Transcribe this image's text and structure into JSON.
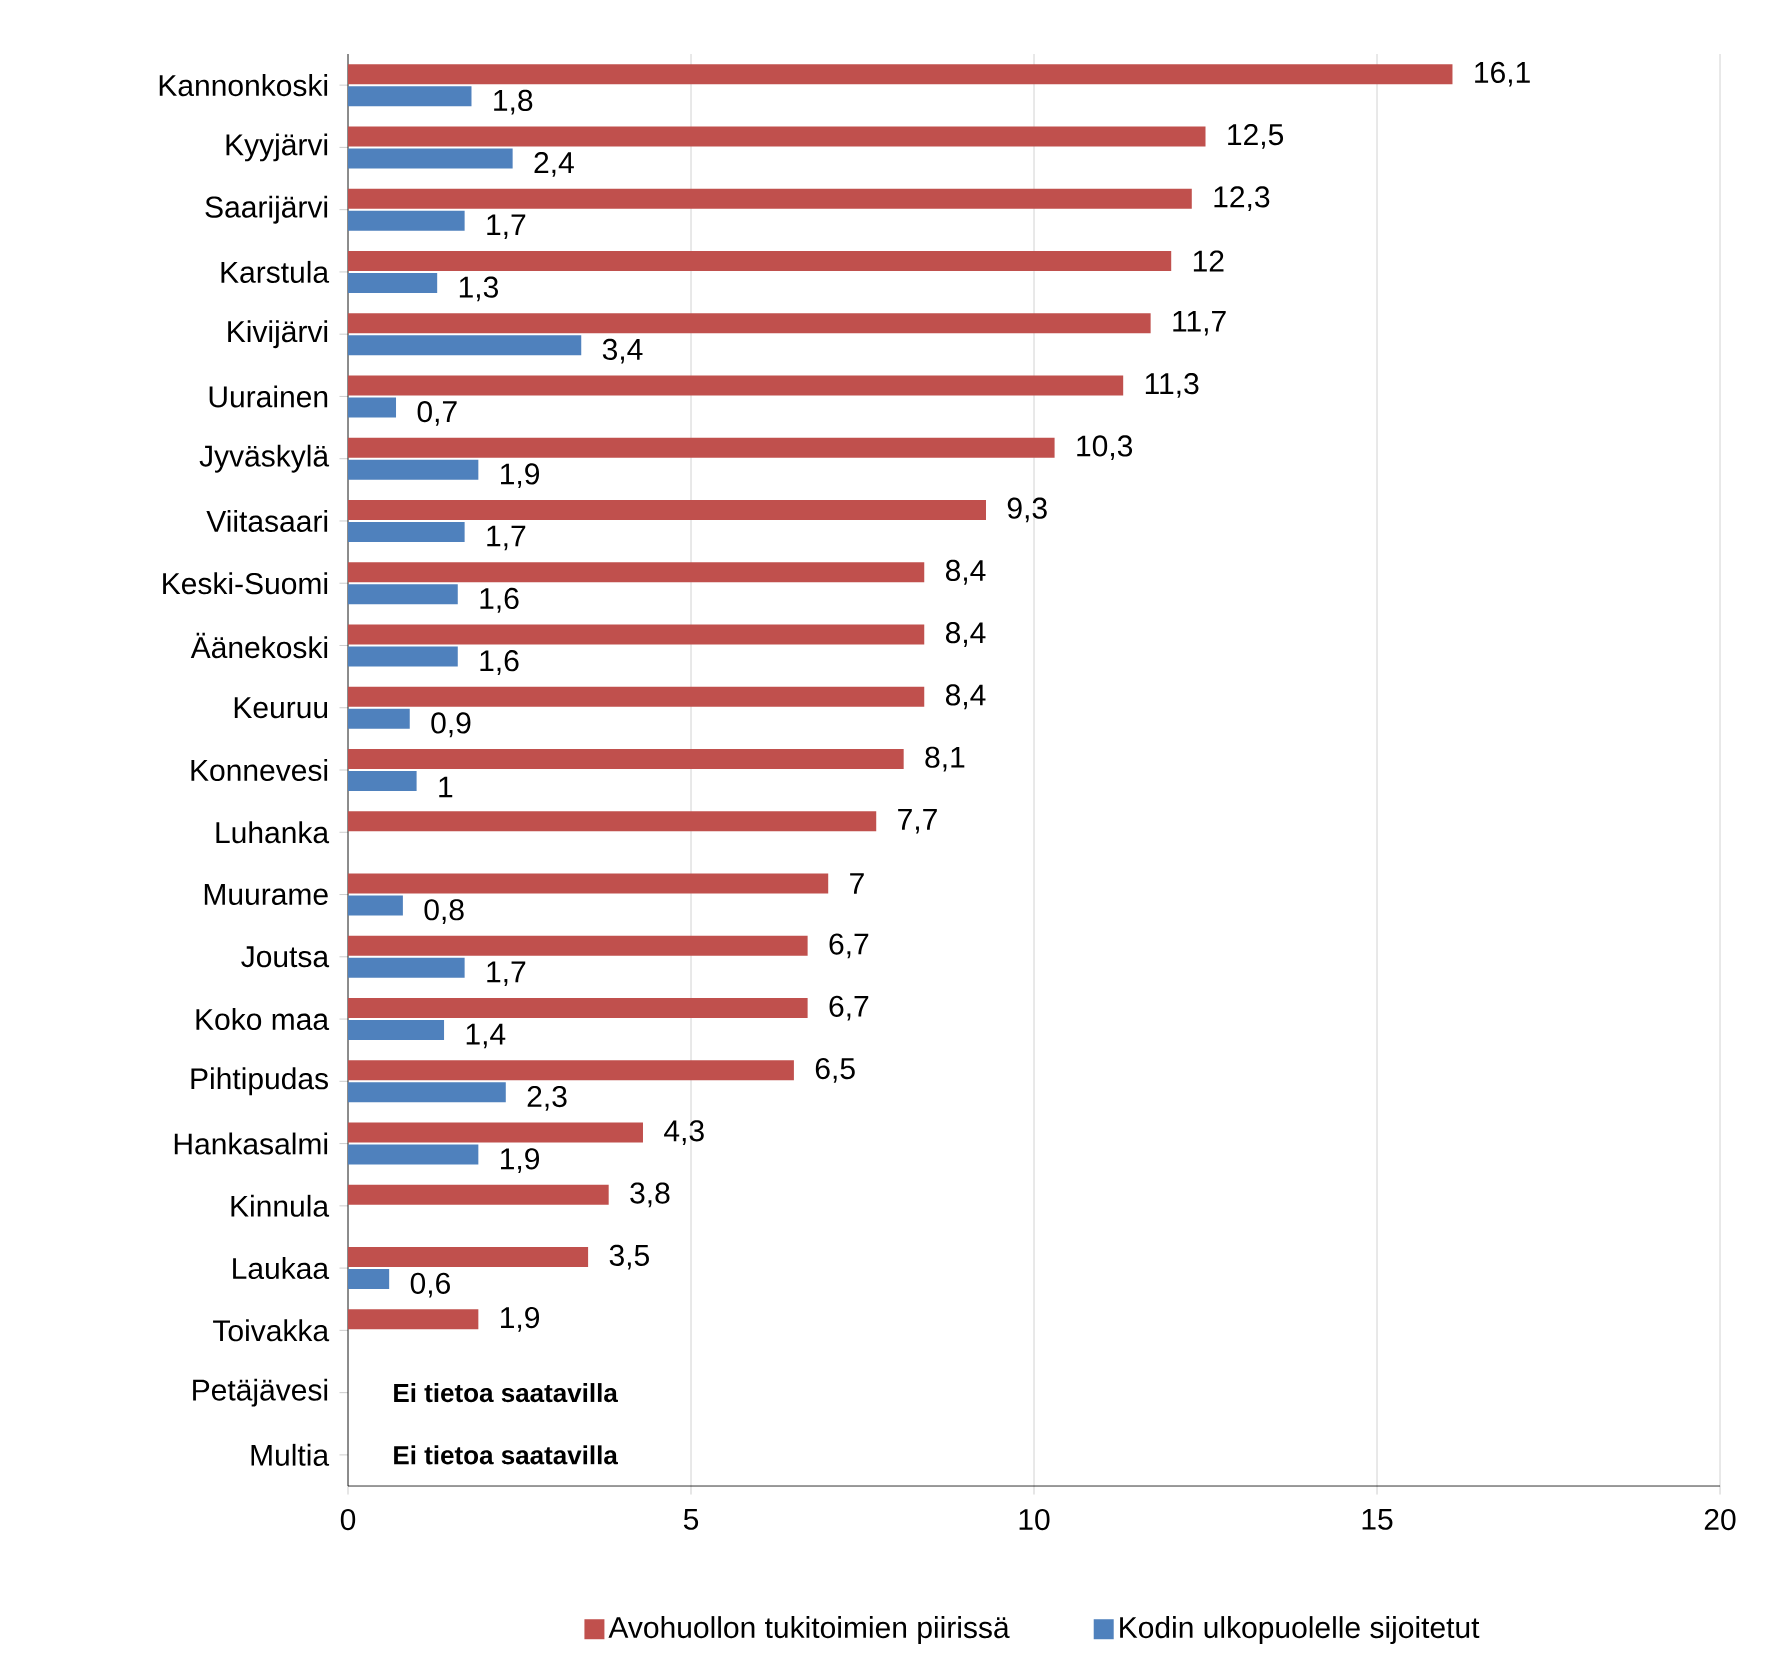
{
  "chart_data": {
    "type": "bar",
    "orientation": "horizontal",
    "categories": [
      "Kannonkoski",
      "Kyyjärvi",
      "Saarijärvi",
      "Karstula",
      "Kivijärvi",
      "Uurainen",
      "Jyväskylä",
      "Viitasaari",
      "Keski-Suomi",
      "Äänekoski",
      "Keuruu",
      "Konnevesi",
      "Luhanka",
      "Muurame",
      "Joutsa",
      "Koko maa",
      "Pihtipudas",
      "Hankasalmi",
      "Kinnula",
      "Laukaa",
      "Toivakka",
      "Petäjävesi",
      "Multia"
    ],
    "series": [
      {
        "name": "Avohuollon tukitoimien piirissä",
        "color": "#c0504d",
        "values": [
          16.1,
          12.5,
          12.3,
          12,
          11.7,
          11.3,
          10.3,
          9.3,
          8.4,
          8.4,
          8.4,
          8.1,
          7.7,
          7,
          6.7,
          6.7,
          6.5,
          4.3,
          3.8,
          3.5,
          1.9,
          null,
          null
        ],
        "value_labels": [
          "16,1",
          "12,5",
          "12,3",
          "12",
          "11,7",
          "11,3",
          "10,3",
          "9,3",
          "8,4",
          "8,4",
          "8,4",
          "8,1",
          "7,7",
          "7",
          "6,7",
          "6,7",
          "6,5",
          "4,3",
          "3,8",
          "3,5",
          "1,9",
          null,
          null
        ]
      },
      {
        "name": "Kodin ulkopuolelle sijoitetut",
        "color": "#4f81bd",
        "values": [
          1.8,
          2.4,
          1.7,
          1.3,
          3.4,
          0.7,
          1.9,
          1.7,
          1.6,
          1.6,
          0.9,
          1,
          null,
          0.8,
          1.7,
          1.4,
          2.3,
          1.9,
          null,
          0.6,
          null,
          null,
          null
        ],
        "value_labels": [
          "1,8",
          "2,4",
          "1,7",
          "1,3",
          "3,4",
          "0,7",
          "1,9",
          "1,7",
          "1,6",
          "1,6",
          "0,9",
          "1",
          null,
          "0,8",
          "1,7",
          "1,4",
          "2,3",
          "1,9",
          null,
          "0,6",
          null,
          null,
          null
        ]
      }
    ],
    "annotations": [
      "Ei tietoa saatavilla",
      "Ei tietoa saatavilla"
    ],
    "xlim": [
      0,
      20
    ],
    "xticks": [
      0,
      5,
      10,
      15,
      20
    ],
    "grid": "x",
    "legend": "bottom"
  }
}
